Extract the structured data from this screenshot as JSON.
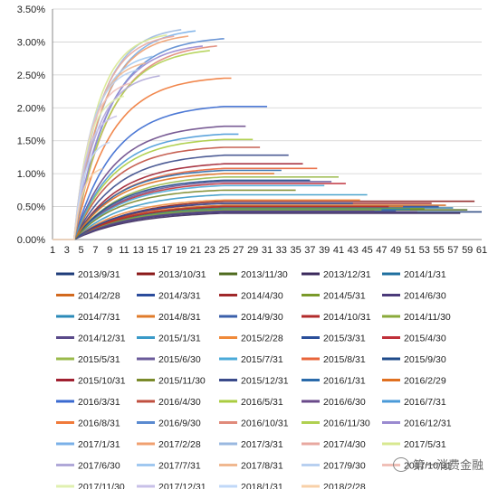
{
  "chart_data": {
    "type": "line",
    "title": "",
    "xlabel": "",
    "ylabel": "",
    "y_ticks": [
      "0.00%",
      "0.50%",
      "1.00%",
      "1.50%",
      "2.00%",
      "2.50%",
      "3.00%",
      "3.50%"
    ],
    "x_ticks": [
      "1",
      "3",
      "5",
      "7",
      "9",
      "11",
      "13",
      "15",
      "17",
      "19",
      "21",
      "23",
      "25",
      "27",
      "29",
      "31",
      "33",
      "35",
      "37",
      "39",
      "41",
      "43",
      "45",
      "47",
      "49",
      "51",
      "53",
      "55",
      "57",
      "59",
      "61"
    ],
    "ylim": [
      0,
      3.5
    ],
    "xlim": [
      1,
      61
    ],
    "legend_position": "bottom",
    "series": [
      {
        "name": "2013/9/31",
        "color": "#1f3d7a",
        "end_x": 61,
        "final": 0.42,
        "rate": 0.9
      },
      {
        "name": "2013/10/31",
        "color": "#8b1a1a",
        "end_x": 60,
        "final": 0.58,
        "rate": 0.85
      },
      {
        "name": "2013/11/30",
        "color": "#4f6b1f",
        "end_x": 59,
        "final": 0.45,
        "rate": 0.8
      },
      {
        "name": "2013/12/31",
        "color": "#3b2a5c",
        "end_x": 58,
        "final": 0.4,
        "rate": 0.8
      },
      {
        "name": "2014/1/31",
        "color": "#1f6f9f",
        "end_x": 57,
        "final": 0.48,
        "rate": 0.85
      },
      {
        "name": "2014/2/28",
        "color": "#d2691e",
        "end_x": 56,
        "final": 0.52,
        "rate": 0.85
      },
      {
        "name": "2014/3/31",
        "color": "#2b4c9c",
        "end_x": 55,
        "final": 0.5,
        "rate": 0.85
      },
      {
        "name": "2014/4/30",
        "color": "#a0282a",
        "end_x": 54,
        "final": 0.55,
        "rate": 0.85
      },
      {
        "name": "2014/5/31",
        "color": "#7a9a2a",
        "end_x": 53,
        "final": 0.47,
        "rate": 0.85
      },
      {
        "name": "2014/6/30",
        "color": "#4b3a7a",
        "end_x": 52,
        "final": 0.42,
        "rate": 0.85
      },
      {
        "name": "2014/7/31",
        "color": "#2a8ab8",
        "end_x": 51,
        "final": 0.46,
        "rate": 0.85
      },
      {
        "name": "2014/8/31",
        "color": "#e07b2a",
        "end_x": 50,
        "final": 0.5,
        "rate": 0.9
      },
      {
        "name": "2014/9/30",
        "color": "#3a5faa",
        "end_x": 49,
        "final": 0.44,
        "rate": 0.9
      },
      {
        "name": "2014/10/31",
        "color": "#b22a2a",
        "end_x": 48,
        "final": 0.5,
        "rate": 0.9
      },
      {
        "name": "2014/11/30",
        "color": "#8aaa3a",
        "end_x": 47,
        "final": 0.45,
        "rate": 0.9
      },
      {
        "name": "2014/12/31",
        "color": "#5a4a8a",
        "end_x": 46,
        "final": 0.43,
        "rate": 0.9
      },
      {
        "name": "2015/1/31",
        "color": "#3a9ac8",
        "end_x": 45,
        "final": 0.68,
        "rate": 0.95
      },
      {
        "name": "2015/2/28",
        "color": "#f08a3a",
        "end_x": 44,
        "final": 0.6,
        "rate": 0.95
      },
      {
        "name": "2015/3/31",
        "color": "#2a4f9a",
        "end_x": 43,
        "final": 0.55,
        "rate": 0.95
      },
      {
        "name": "2015/4/30",
        "color": "#c0303a",
        "end_x": 42,
        "final": 0.85,
        "rate": 1.0
      },
      {
        "name": "2015/5/31",
        "color": "#9aba4a",
        "end_x": 41,
        "final": 0.95,
        "rate": 1.0
      },
      {
        "name": "2015/6/30",
        "color": "#6a5a9a",
        "end_x": 40,
        "final": 0.88,
        "rate": 1.0
      },
      {
        "name": "2015/7/31",
        "color": "#4aaad8",
        "end_x": 39,
        "final": 0.82,
        "rate": 1.0
      },
      {
        "name": "2015/8/31",
        "color": "#e8643a",
        "end_x": 38,
        "final": 1.08,
        "rate": 1.05
      },
      {
        "name": "2015/9/30",
        "color": "#1e4a8a",
        "end_x": 37,
        "final": 0.9,
        "rate": 1.05
      },
      {
        "name": "2015/10/31",
        "color": "#a02030",
        "end_x": 36,
        "final": 1.15,
        "rate": 1.05
      },
      {
        "name": "2015/11/30",
        "color": "#7a8a2a",
        "end_x": 35,
        "final": 0.75,
        "rate": 1.05
      },
      {
        "name": "2015/12/31",
        "color": "#3a4a8a",
        "end_x": 34,
        "final": 1.28,
        "rate": 1.1
      },
      {
        "name": "2016/1/31",
        "color": "#2a6aaa",
        "end_x": 33,
        "final": 1.05,
        "rate": 1.1
      },
      {
        "name": "2016/2/29",
        "color": "#e07020",
        "end_x": 32,
        "final": 1.0,
        "rate": 1.1
      },
      {
        "name": "2016/3/31",
        "color": "#3a6ad0",
        "end_x": 31,
        "final": 2.02,
        "rate": 1.2
      },
      {
        "name": "2016/4/30",
        "color": "#c05040",
        "end_x": 30,
        "final": 1.4,
        "rate": 1.2
      },
      {
        "name": "2016/5/31",
        "color": "#aacc40",
        "end_x": 29,
        "final": 1.52,
        "rate": 1.2
      },
      {
        "name": "2016/6/30",
        "color": "#6a4a8a",
        "end_x": 28,
        "final": 1.72,
        "rate": 1.2
      },
      {
        "name": "2016/7/31",
        "color": "#4a9ad8",
        "end_x": 27,
        "final": 1.6,
        "rate": 1.2
      },
      {
        "name": "2016/8/31",
        "color": "#f07a3a",
        "end_x": 26,
        "final": 2.45,
        "rate": 1.3
      },
      {
        "name": "2016/9/30",
        "color": "#5a8ad0",
        "end_x": 25,
        "final": 3.05,
        "rate": 1.35
      },
      {
        "name": "2016/10/31",
        "color": "#e08a7a",
        "end_x": 24,
        "final": 2.95,
        "rate": 1.3
      },
      {
        "name": "2016/11/30",
        "color": "#b0d050",
        "end_x": 23,
        "final": 2.88,
        "rate": 1.3
      },
      {
        "name": "2016/12/31",
        "color": "#9a8ad0",
        "end_x": 22,
        "final": 2.95,
        "rate": 1.3
      },
      {
        "name": "2017/1/31",
        "color": "#7ab0e8",
        "end_x": 21,
        "final": 3.18,
        "rate": 1.35
      },
      {
        "name": "2017/2/28",
        "color": "#f0a070",
        "end_x": 20,
        "final": 3.1,
        "rate": 1.35
      },
      {
        "name": "2017/3/31",
        "color": "#9ab8e0",
        "end_x": 19,
        "final": 3.2,
        "rate": 1.35
      },
      {
        "name": "2017/4/30",
        "color": "#e8a8a0",
        "end_x": 18,
        "final": 3.1,
        "rate": 1.35
      },
      {
        "name": "2017/5/31",
        "color": "#d8e890",
        "end_x": 17,
        "final": 3.12,
        "rate": 1.35
      },
      {
        "name": "2017/6/30",
        "color": "#b0a8d8",
        "end_x": 16,
        "final": 2.5,
        "rate": 1.3
      },
      {
        "name": "2017/7/31",
        "color": "#a0c8f0",
        "end_x": 15,
        "final": 2.8,
        "rate": 1.3
      },
      {
        "name": "2017/8/31",
        "color": "#f0b890",
        "end_x": 14,
        "final": 2.7,
        "rate": 1.3
      },
      {
        "name": "2017/9/30",
        "color": "#b8d0f0",
        "end_x": 13,
        "final": 2.6,
        "rate": 1.3
      },
      {
        "name": "2017/10/31",
        "color": "#f0c0b8",
        "end_x": 12,
        "final": 2.4,
        "rate": 1.3
      },
      {
        "name": "2017/11/30",
        "color": "#e0f0b0",
        "end_x": 11,
        "final": 2.2,
        "rate": 1.3
      },
      {
        "name": "2017/12/31",
        "color": "#c8c0e8",
        "end_x": 10,
        "final": 1.9,
        "rate": 1.3
      },
      {
        "name": "2018/1/31",
        "color": "#c0d8f8",
        "end_x": 9,
        "final": 1.5,
        "rate": 1.3
      },
      {
        "name": "2018/2/28",
        "color": "#f8d0a8",
        "end_x": 8,
        "final": 1.1,
        "rate": 1.3
      }
    ]
  },
  "watermark": {
    "text": "第一消费金融"
  }
}
